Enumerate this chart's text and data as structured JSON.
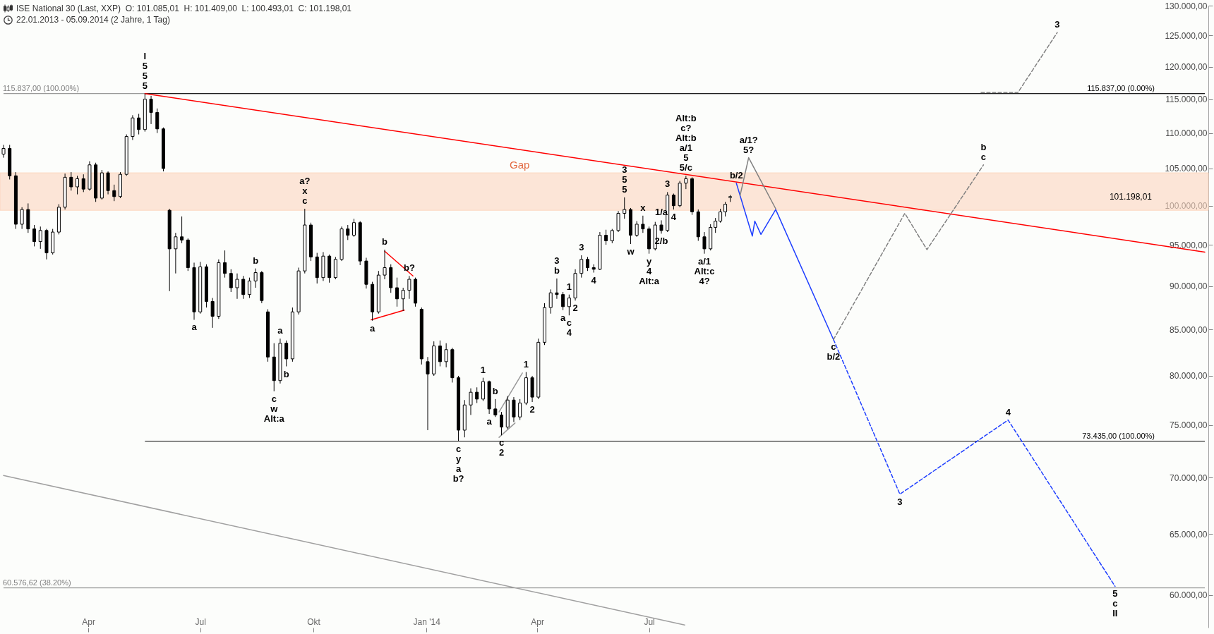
{
  "chart_data": {
    "type": "candlestick",
    "title": "ISE National 30 (Last, XXP)  O: 101.085,01  H: 101.409,00  L: 100.493,01  C: 101.198,01",
    "subtitle": "22.01.2013 - 05.09.2014 (2 Jahre, 1 Tag)",
    "log": true,
    "xlim": [
      "2013-01-22",
      "2015-09-26"
    ],
    "ylim": [
      57500,
      130000
    ],
    "xticks": [
      {
        "value": "2013-04-01",
        "label": "Apr"
      },
      {
        "value": "2013-07-01",
        "label": "Jul"
      },
      {
        "value": "2013-10-01",
        "label": "Okt"
      },
      {
        "value": "2014-01-01",
        "label": "Jan '14"
      },
      {
        "value": "2014-04-01",
        "label": "Apr"
      },
      {
        "value": "2014-07-01",
        "label": "Jul"
      }
    ],
    "yticks": [
      {
        "value": 60000,
        "label": "60.000,00"
      },
      {
        "value": 65000,
        "label": "65.000,00"
      },
      {
        "value": 70000,
        "label": "70.000,00"
      },
      {
        "value": 75000,
        "label": "75.000,00"
      },
      {
        "value": 80000,
        "label": "80.000,00"
      },
      {
        "value": 85000,
        "label": "85.000,00"
      },
      {
        "value": 90000,
        "label": "90.000,00"
      },
      {
        "value": 95000,
        "label": "95.000,00"
      },
      {
        "value": 100000,
        "label": "100.000,00"
      },
      {
        "value": 105000,
        "label": "105.000,00"
      },
      {
        "value": 110000,
        "label": "110.000,00"
      },
      {
        "value": 115000,
        "label": "115.000,00"
      },
      {
        "value": 120000,
        "label": "120.000,00"
      },
      {
        "value": 125000,
        "label": "125.000,00"
      },
      {
        "value": 130000,
        "label": "130.000,00"
      }
    ],
    "x": [
      "2013-01-22",
      "2013-01-27",
      "2013-02-01",
      "2013-02-06",
      "2013-02-11",
      "2013-02-16",
      "2013-02-21",
      "2013-02-26",
      "2013-03-03",
      "2013-03-08",
      "2013-03-13",
      "2013-03-18",
      "2013-03-23",
      "2013-03-28",
      "2013-04-02",
      "2013-04-07",
      "2013-04-12",
      "2013-04-17",
      "2013-04-22",
      "2013-04-27",
      "2013-05-02",
      "2013-05-07",
      "2013-05-12",
      "2013-05-17",
      "2013-05-22",
      "2013-05-27",
      "2013-06-01",
      "2013-06-06",
      "2013-06-11",
      "2013-06-16",
      "2013-06-21",
      "2013-06-26",
      "2013-07-01",
      "2013-07-06",
      "2013-07-11",
      "2013-07-16",
      "2013-07-21",
      "2013-07-26",
      "2013-07-31",
      "2013-08-05",
      "2013-08-10",
      "2013-08-15",
      "2013-08-20",
      "2013-08-25",
      "2013-08-30",
      "2013-09-04",
      "2013-09-09",
      "2013-09-14",
      "2013-09-19",
      "2013-09-24",
      "2013-09-29",
      "2013-10-04",
      "2013-10-09",
      "2013-10-14",
      "2013-10-19",
      "2013-10-24",
      "2013-10-29",
      "2013-11-03",
      "2013-11-08",
      "2013-11-13",
      "2013-11-18",
      "2013-11-23",
      "2013-11-28",
      "2013-12-03",
      "2013-12-08",
      "2013-12-13",
      "2013-12-18",
      "2013-12-23",
      "2013-12-28",
      "2014-01-02",
      "2014-01-07",
      "2014-01-12",
      "2014-01-17",
      "2014-01-22",
      "2014-01-27",
      "2014-02-01",
      "2014-02-06",
      "2014-02-11",
      "2014-02-16",
      "2014-02-21",
      "2014-02-26",
      "2014-03-03",
      "2014-03-08",
      "2014-03-13",
      "2014-03-18",
      "2014-03-23",
      "2014-03-28",
      "2014-04-02",
      "2014-04-07",
      "2014-04-12",
      "2014-04-17",
      "2014-04-22",
      "2014-04-27",
      "2014-05-02",
      "2014-05-07",
      "2014-05-12",
      "2014-05-17",
      "2014-05-22",
      "2014-05-27",
      "2014-06-01",
      "2014-06-06",
      "2014-06-11",
      "2014-06-16",
      "2014-06-21",
      "2014-06-26",
      "2014-07-01",
      "2014-07-06",
      "2014-07-11",
      "2014-07-16",
      "2014-07-21",
      "2014-07-26",
      "2014-07-31",
      "2014-08-05",
      "2014-08-10",
      "2014-08-15",
      "2014-08-20",
      "2014-08-24",
      "2014-08-28",
      "2014-09-01",
      "2014-09-05"
    ],
    "ohlc": [
      [
        107000,
        108300,
        106500,
        107800
      ],
      [
        107800,
        108300,
        103500,
        104000
      ],
      [
        104000,
        104500,
        97000,
        97600
      ],
      [
        97600,
        99800,
        97000,
        99500
      ],
      [
        99500,
        100300,
        96500,
        97000
      ],
      [
        97000,
        97500,
        94800,
        95400
      ],
      [
        95400,
        97300,
        94500,
        96800
      ],
      [
        96800,
        97000,
        93200,
        94000
      ],
      [
        94000,
        97000,
        93800,
        96600
      ],
      [
        96600,
        100200,
        96300,
        99800
      ],
      [
        99800,
        104300,
        99500,
        103800
      ],
      [
        103800,
        104500,
        102000,
        102500
      ],
      [
        102500,
        104000,
        101500,
        103600
      ],
      [
        103600,
        104200,
        101800,
        102200
      ],
      [
        102200,
        106000,
        102000,
        105500
      ],
      [
        105500,
        105800,
        100500,
        101000
      ],
      [
        101000,
        104800,
        100800,
        104400
      ],
      [
        104400,
        104600,
        101500,
        102000
      ],
      [
        102000,
        102800,
        100600,
        101200
      ],
      [
        101200,
        104500,
        101000,
        104200
      ],
      [
        104200,
        109800,
        104000,
        109500
      ],
      [
        109500,
        112600,
        109000,
        112200
      ],
      [
        112200,
        112800,
        109800,
        110500
      ],
      [
        110500,
        115837,
        110200,
        115000
      ],
      [
        115000,
        115500,
        111300,
        113000
      ],
      [
        113000,
        113600,
        110000,
        110600
      ],
      [
        110600,
        110800,
        104600,
        105000
      ],
      [
        99400,
        99600,
        89400,
        94500
      ],
      [
        94500,
        96500,
        91500,
        96000
      ],
      [
        96000,
        98600,
        95200,
        95600
      ],
      [
        95600,
        95800,
        91800,
        92200
      ],
      [
        92200,
        92800,
        86100,
        87000
      ],
      [
        87000,
        92900,
        86800,
        92300
      ],
      [
        92300,
        92600,
        87500,
        88200
      ],
      [
        88200,
        88600,
        85200,
        86500
      ],
      [
        86500,
        93200,
        86200,
        92800
      ],
      [
        92800,
        94300,
        91000,
        91500
      ],
      [
        91500,
        92000,
        89300,
        89800
      ],
      [
        89800,
        91500,
        88500,
        90800
      ],
      [
        90800,
        91200,
        88500,
        89000
      ],
      [
        89000,
        91000,
        88600,
        90600
      ],
      [
        90600,
        92100,
        89800,
        91600
      ],
      [
        91600,
        91800,
        88000,
        88300
      ],
      [
        87000,
        87300,
        81500,
        82000
      ],
      [
        82000,
        83500,
        78400,
        79500
      ],
      [
        79500,
        84000,
        79200,
        83500
      ],
      [
        83500,
        83800,
        81000,
        81800
      ],
      [
        81800,
        87500,
        81500,
        87000
      ],
      [
        87000,
        92200,
        86700,
        91800
      ],
      [
        91800,
        99600,
        91500,
        97500
      ],
      [
        97500,
        97800,
        93000,
        93500
      ],
      [
        93500,
        94000,
        90300,
        91000
      ],
      [
        91000,
        94100,
        90600,
        93600
      ],
      [
        93600,
        93800,
        90400,
        91000
      ],
      [
        91000,
        93500,
        90800,
        93200
      ],
      [
        93200,
        97300,
        93000,
        97000
      ],
      [
        97000,
        97500,
        95600,
        96200
      ],
      [
        96200,
        98300,
        96000,
        97800
      ],
      [
        97800,
        98000,
        92500,
        93000
      ],
      [
        93000,
        93400,
        89700,
        90200
      ],
      [
        90200,
        90500,
        86000,
        87000
      ],
      [
        87000,
        91800,
        86800,
        91300
      ],
      [
        91300,
        94400,
        90800,
        92200
      ],
      [
        92200,
        92600,
        89200,
        89800
      ],
      [
        89800,
        91000,
        87600,
        88500
      ],
      [
        88500,
        89800,
        87100,
        89500
      ],
      [
        89500,
        91200,
        88500,
        90800
      ],
      [
        90800,
        91000,
        87600,
        88000
      ],
      [
        87300,
        87500,
        81200,
        81800
      ],
      [
        81500,
        82000,
        74500,
        80200
      ],
      [
        80200,
        83700,
        80000,
        83200
      ],
      [
        83200,
        83800,
        81000,
        81500
      ],
      [
        81500,
        83500,
        80900,
        82800
      ],
      [
        82800,
        83000,
        79300,
        79800
      ],
      [
        79800,
        80000,
        73435,
        74500
      ],
      [
        74500,
        77500,
        73800,
        77000
      ],
      [
        77000,
        78700,
        76000,
        78300
      ],
      [
        78300,
        78800,
        77200,
        77600
      ],
      [
        77600,
        79800,
        77400,
        79400
      ],
      [
        79400,
        79500,
        76100,
        76600
      ],
      [
        76600,
        77600,
        75800,
        76000
      ],
      [
        76000,
        76300,
        74000,
        74800
      ],
      [
        74800,
        77900,
        74600,
        77500
      ],
      [
        77500,
        77800,
        75300,
        75800
      ],
      [
        75800,
        77600,
        75500,
        77200
      ],
      [
        77200,
        80400,
        77000,
        79800
      ],
      [
        79800,
        80000,
        77300,
        77800
      ],
      [
        77800,
        84000,
        77600,
        83600
      ],
      [
        83600,
        88000,
        83300,
        87500
      ],
      [
        87500,
        89600,
        86800,
        89200
      ],
      [
        89200,
        90900,
        88500,
        89000
      ],
      [
        89000,
        89300,
        87200,
        87600
      ],
      [
        87600,
        89000,
        86600,
        88600
      ],
      [
        88600,
        92000,
        88300,
        91500
      ],
      [
        91500,
        93700,
        91000,
        93200
      ],
      [
        93200,
        93500,
        91800,
        92200
      ],
      [
        92200,
        92600,
        91600,
        92000
      ],
      [
        92000,
        96600,
        91900,
        96200
      ],
      [
        96200,
        96900,
        95000,
        95500
      ],
      [
        95500,
        97000,
        95200,
        96800
      ],
      [
        96800,
        99300,
        96600,
        99000
      ],
      [
        99000,
        101100,
        98300,
        99500
      ],
      [
        99500,
        99700,
        95100,
        96200
      ],
      [
        96200,
        98000,
        96000,
        97600
      ],
      [
        97600,
        98700,
        96500,
        97000
      ],
      [
        97000,
        97300,
        93900,
        94500
      ],
      [
        94500,
        97900,
        94300,
        97500
      ],
      [
        97500,
        98100,
        96400,
        96800
      ],
      [
        96800,
        101800,
        96600,
        101400
      ],
      [
        101400,
        101600,
        99500,
        100000
      ],
      [
        100000,
        103300,
        99800,
        103000
      ],
      [
        103000,
        104000,
        102200,
        103600
      ],
      [
        103600,
        103800,
        98800,
        99200
      ],
      [
        99200,
        99500,
        95500,
        96000
      ],
      [
        96000,
        96600,
        93900,
        94500
      ],
      [
        94500,
        97600,
        94300,
        97200
      ],
      [
        97200,
        98400,
        96500,
        98000
      ],
      [
        98000,
        99600,
        97800,
        99200
      ],
      [
        99200,
        100500,
        98600,
        100200
      ],
      [
        101085.01,
        101409,
        100493.01,
        101198.01
      ]
    ],
    "series": [
      {
        "type": "line",
        "color": "#ff0000",
        "x": [
          "2013-05-17",
          "2015-09-26"
        ],
        "values": [
          115837,
          94100
        ]
      },
      {
        "type": "line",
        "color": "#a0a0a0",
        "x": [
          "2013-01-22",
          "2014-07-30"
        ],
        "values": [
          70200,
          57700
        ]
      },
      {
        "type": "line",
        "color": "#ff0000",
        "x": [
          "2013-11-28",
          "2013-12-21"
        ],
        "values": [
          94200,
          91200
        ]
      },
      {
        "type": "line",
        "color": "#ff0000",
        "x": [
          "2013-11-17",
          "2013-12-14"
        ],
        "values": [
          86100,
          87200
        ]
      },
      {
        "type": "line",
        "color": "#999999",
        "x": [
          "2014-03-01",
          "2014-03-20"
        ],
        "values": [
          76300,
          80300
        ]
      },
      {
        "type": "line",
        "color": "#999999",
        "x": [
          "2014-03-01",
          "2014-03-14"
        ],
        "values": [
          73800,
          75200
        ]
      },
      {
        "type": "line",
        "color": "#1f3fff",
        "x": [
          "2014-09-10",
          "2014-09-23",
          "2014-09-25",
          "2014-09-30",
          "2014-10-12",
          "2014-11-28"
        ],
        "values": [
          103000,
          96100,
          98000,
          96300,
          99500,
          83900
        ]
      },
      {
        "type": "line",
        "color": "#1f3fff",
        "line_style": "dashed",
        "x": [
          "2014-11-28",
          "2015-01-21",
          "2015-04-19",
          "2015-07-15"
        ],
        "values": [
          83900,
          68500,
          75500,
          60700
        ]
      },
      {
        "type": "line",
        "color": "#808080",
        "line_style": "dashed",
        "x": [
          "2014-11-28",
          "2015-01-25",
          "2015-02-12",
          "2015-03-30"
        ],
        "values": [
          83900,
          99000,
          94400,
          105500
        ]
      },
      {
        "type": "line",
        "color": "#808080",
        "line_style": "dashed",
        "x": [
          "2015-03-28",
          "2015-04-27",
          "2015-05-29"
        ],
        "values": [
          116000,
          116000,
          125500
        ]
      },
      {
        "type": "line",
        "color": "#808080",
        "x": [
          "2014-09-13",
          "2014-09-20",
          "2014-10-12"
        ],
        "values": [
          101300,
          106500,
          99600
        ]
      }
    ],
    "ref_lines": [
      {
        "axis": "y",
        "value": 115837,
        "label": "115.837,00 (100.00%)",
        "color": "#808080"
      },
      {
        "axis": "y",
        "value": 115837,
        "label": "115.837,00 (0.00%)",
        "color": "#000000"
      },
      {
        "axis": "y",
        "value": 60576.62,
        "label": "60.576,62 (38.20%)",
        "color": "#808080"
      },
      {
        "axis": "y",
        "value": 73435,
        "label": "73.435,00 (100.00%)",
        "color": "#000000"
      }
    ],
    "bands": [
      {
        "axis": "y",
        "from": 99400,
        "to": 104400,
        "label": "Gap",
        "color": "#fcd6bf"
      }
    ],
    "annotations": [
      "101.198,01",
      {
        "text": "5",
        "x": "2013-05-17",
        "y": 115837
      },
      {
        "text": "5",
        "x": "2013-05-17",
        "y": 115837
      },
      {
        "text": "5",
        "x": "2013-05-17",
        "y": 115837
      },
      "I",
      {
        "text": "c",
        "x": "2013-09-24",
        "y": 99600
      },
      {
        "text": "x",
        "x": "2013-09-24",
        "y": 99600
      },
      {
        "text": "a?",
        "x": "2013-09-24",
        "y": 99600
      },
      {
        "text": "b",
        "x": "2013-08-15",
        "y": 92100
      },
      {
        "text": "b",
        "x": "2013-11-28",
        "y": 94400
      },
      {
        "text": "b?",
        "x": "2013-12-18",
        "y": 91200
      },
      {
        "text": "a",
        "x": "2013-06-26",
        "y": 86100
      },
      {
        "text": "a",
        "x": "2013-09-04",
        "y": 84000
      },
      {
        "text": "b",
        "x": "2013-09-09",
        "y": 81000
      },
      {
        "text": "c",
        "x": "2013-08-30",
        "y": 78400
      },
      {
        "text": "w",
        "x": "2013-08-30",
        "y": 78400
      },
      {
        "text": "Alt:a",
        "x": "2013-08-30",
        "y": 78400
      },
      {
        "text": "a",
        "x": "2013-11-18",
        "y": 86000
      },
      {
        "text": "c",
        "x": "2014-01-27",
        "y": 73435
      },
      {
        "text": "y",
        "x": "2014-01-27",
        "y": 73435
      },
      {
        "text": "a",
        "x": "2014-01-27",
        "y": 73435
      },
      "b?",
      {
        "text": "1",
        "x": "2014-02-16",
        "y": 79800
      },
      {
        "text": "b",
        "x": "2014-02-26",
        "y": 77600
      },
      {
        "text": "a",
        "x": "2014-02-21",
        "y": 76100
      },
      {
        "text": "c",
        "x": "2014-03-03",
        "y": 74000
      },
      {
        "text": "2",
        "x": "2014-03-03",
        "y": 74000
      },
      {
        "text": "1",
        "x": "2014-03-23",
        "y": 80400
      },
      {
        "text": "2",
        "x": "2014-03-28",
        "y": 77300
      },
      {
        "text": "b",
        "x": "2014-04-17",
        "y": 90900
      },
      {
        "text": "3",
        "x": "2014-04-17",
        "y": 90900
      },
      {
        "text": "a",
        "x": "2014-04-22",
        "y": 87200
      },
      {
        "text": "c",
        "x": "2014-04-27",
        "y": 86600
      },
      {
        "text": "4",
        "x": "2014-04-27",
        "y": 86600
      },
      {
        "text": "1",
        "x": "2014-04-27",
        "y": 89000
      },
      {
        "text": "2",
        "x": "2014-05-02",
        "y": 88300
      },
      {
        "text": "3",
        "x": "2014-05-07",
        "y": 93700
      },
      {
        "text": "4",
        "x": "2014-05-17",
        "y": 91600
      },
      {
        "text": "5",
        "x": "2014-06-11",
        "y": 101100
      },
      {
        "text": "5",
        "x": "2014-06-11",
        "y": 101100
      },
      {
        "text": "3",
        "x": "2014-06-11",
        "y": 101100
      },
      {
        "text": "w",
        "x": "2014-06-16",
        "y": 95100
      },
      {
        "text": "x",
        "x": "2014-06-26",
        "y": 98700
      },
      {
        "text": "y",
        "x": "2014-07-01",
        "y": 93900
      },
      {
        "text": "4",
        "x": "2014-07-01",
        "y": 93900
      },
      {
        "text": "Alt:a",
        "x": "2014-07-01",
        "y": 93900
      },
      {
        "text": "1/a",
        "x": "2014-07-11",
        "y": 98100
      },
      {
        "text": "2/b",
        "x": "2014-07-11",
        "y": 96400
      },
      {
        "text": "3",
        "x": "2014-07-16",
        "y": 101800
      },
      {
        "text": "4",
        "x": "2014-07-21",
        "y": 99500
      },
      {
        "text": "5/c",
        "x": "2014-07-31",
        "y": 104000
      },
      {
        "text": "5",
        "x": "2014-07-31",
        "y": 104000
      },
      {
        "text": "a/1",
        "x": "2014-07-31",
        "y": 104000
      },
      "Alt:b",
      "c?",
      "Alt:b",
      {
        "text": "a/1",
        "x": "2014-08-15",
        "y": 93900
      },
      {
        "text": "Alt:c",
        "x": "2014-08-15",
        "y": 93900
      },
      {
        "text": "4?",
        "x": "2014-08-15",
        "y": 93900
      },
      {
        "text": "b/2",
        "x": "2014-09-10",
        "y": 103000
      },
      {
        "text": "5?",
        "x": "2014-09-20",
        "y": 106500
      },
      {
        "text": "a/1?",
        "x": "2014-09-20",
        "y": 106500
      },
      {
        "text": "c",
        "x": "2014-11-28",
        "y": 83900
      },
      {
        "text": "b/2",
        "x": "2014-11-28",
        "y": 83900
      },
      {
        "text": "3",
        "x": "2015-01-21",
        "y": 68500
      },
      {
        "text": "4",
        "x": "2015-04-19",
        "y": 75500
      },
      {
        "text": "5",
        "x": "2015-07-15",
        "y": 60700
      },
      {
        "text": "c",
        "x": "2015-07-15",
        "y": 60700
      },
      {
        "text": "II",
        "x": "2015-07-15",
        "y": 60700
      },
      {
        "text": "c",
        "x": "2015-03-30",
        "y": 105500
      },
      {
        "text": "b",
        "x": "2015-03-30",
        "y": 105500
      },
      {
        "text": "3",
        "x": "2015-05-29",
        "y": 125500
      }
    ]
  }
}
